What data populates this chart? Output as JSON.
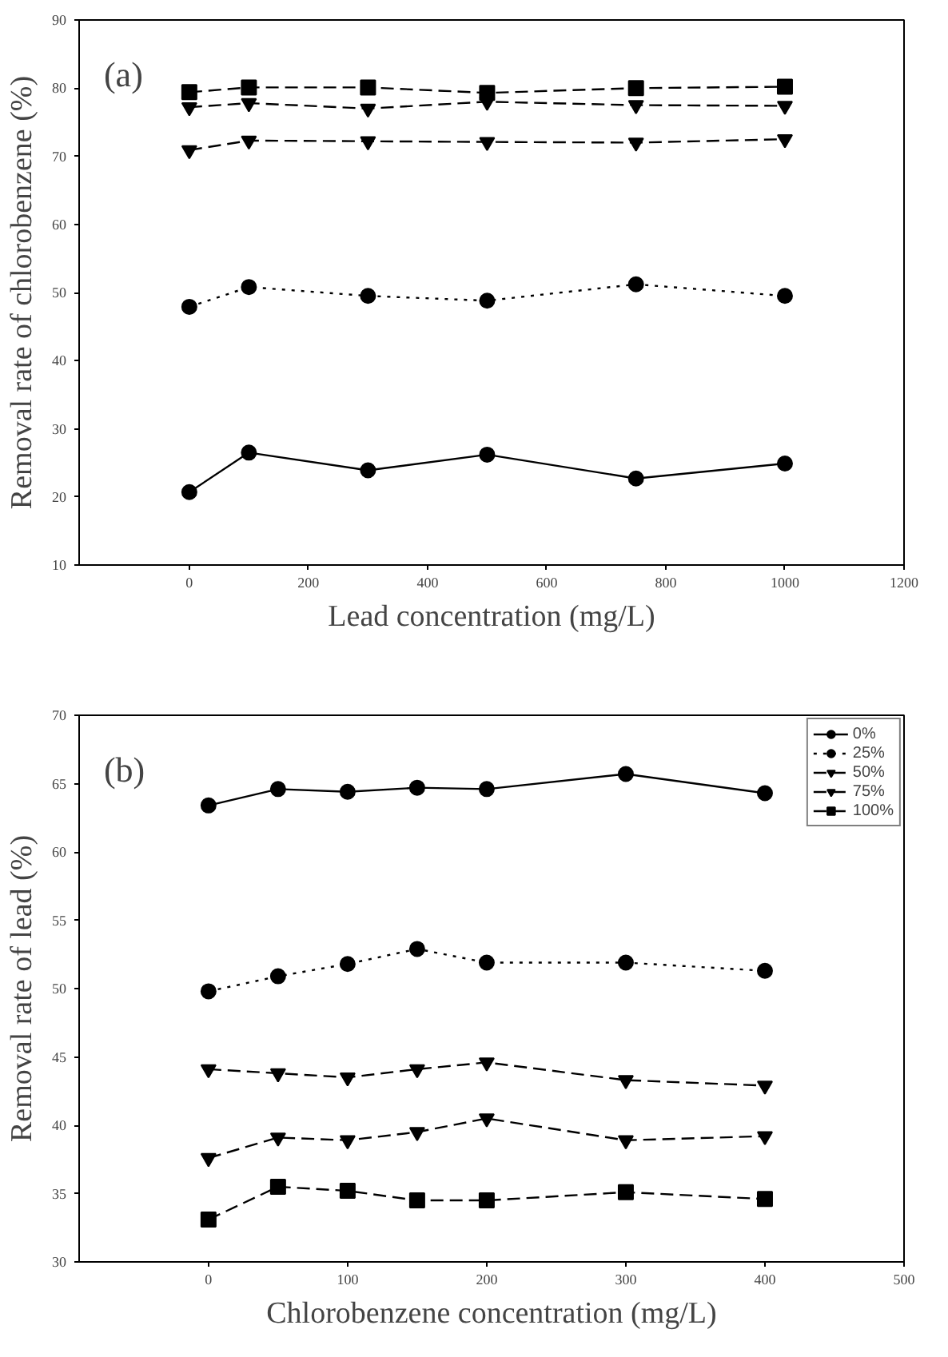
{
  "chart_data": [
    {
      "type": "line",
      "xlabel": "Lead concentration (mg/L)",
      "ylabel": "Removal rate of chlorobenzene (%)",
      "annotations": [
        "(a)"
      ],
      "x": [
        0,
        100,
        300,
        500,
        750,
        1000
      ],
      "xlim": [
        -185,
        1200
      ],
      "xticks": [
        0,
        200,
        400,
        600,
        800,
        1000,
        1200
      ],
      "ylim": [
        10,
        90
      ],
      "yticks": [
        10,
        20,
        30,
        40,
        50,
        60,
        70,
        80,
        90
      ],
      "grid": false,
      "series": [
        {
          "color": "#000000",
          "marker": "circle",
          "line_style": "solid",
          "values": [
            20.7,
            26.5,
            23.9,
            26.2,
            22.7,
            24.9
          ]
        },
        {
          "color": "#000000",
          "marker": "circle",
          "line_style": "dotted",
          "values": [
            47.9,
            50.8,
            49.5,
            48.8,
            51.2,
            49.5
          ]
        },
        {
          "color": "#000000",
          "marker": "triangle",
          "line_style": "dashed",
          "values": [
            70.9,
            72.3,
            72.2,
            72.1,
            72.0,
            72.5
          ]
        },
        {
          "color": "#000000",
          "marker": "triangle",
          "line_style": "dashed",
          "values": [
            77.2,
            77.8,
            77.0,
            78.0,
            77.5,
            77.4
          ]
        },
        {
          "color": "#000000",
          "marker": "square",
          "line_style": "dashed",
          "values": [
            79.4,
            80.1,
            80.1,
            79.3,
            80.0,
            80.2
          ]
        }
      ]
    },
    {
      "type": "line",
      "xlabel": "Chlorobenzene concentration (mg/L)",
      "ylabel": "Removal rate of lead (%)",
      "annotations": [
        "(b)"
      ],
      "x": [
        0,
        50,
        100,
        150,
        200,
        300,
        400
      ],
      "xlim": [
        -93,
        500
      ],
      "xticks": [
        0,
        100,
        200,
        300,
        400,
        500
      ],
      "ylim": [
        30,
        70
      ],
      "yticks": [
        30,
        35,
        40,
        45,
        50,
        55,
        60,
        65,
        70
      ],
      "grid": false,
      "legend": "top right",
      "series": [
        {
          "name": "0%",
          "color": "#000000",
          "marker": "circle",
          "line_style": "solid",
          "values": [
            63.4,
            64.6,
            64.4,
            64.7,
            64.6,
            65.7,
            64.3
          ]
        },
        {
          "name": "25%",
          "color": "#000000",
          "marker": "circle",
          "line_style": "dotted",
          "values": [
            49.8,
            50.9,
            51.8,
            52.9,
            51.9,
            51.9,
            51.3
          ]
        },
        {
          "name": "50%",
          "color": "#000000",
          "marker": "triangle",
          "line_style": "dashed",
          "values": [
            44.1,
            43.8,
            43.5,
            44.1,
            44.6,
            43.3,
            42.9
          ]
        },
        {
          "name": "75%",
          "color": "#000000",
          "marker": "triangle",
          "line_style": "dashed",
          "values": [
            37.6,
            39.1,
            38.9,
            39.5,
            40.5,
            38.9,
            39.2
          ]
        },
        {
          "name": "100%",
          "color": "#000000",
          "marker": "square",
          "line_style": "dashed",
          "values": [
            33.1,
            35.5,
            35.2,
            34.5,
            34.5,
            35.1,
            34.6
          ]
        }
      ]
    }
  ]
}
